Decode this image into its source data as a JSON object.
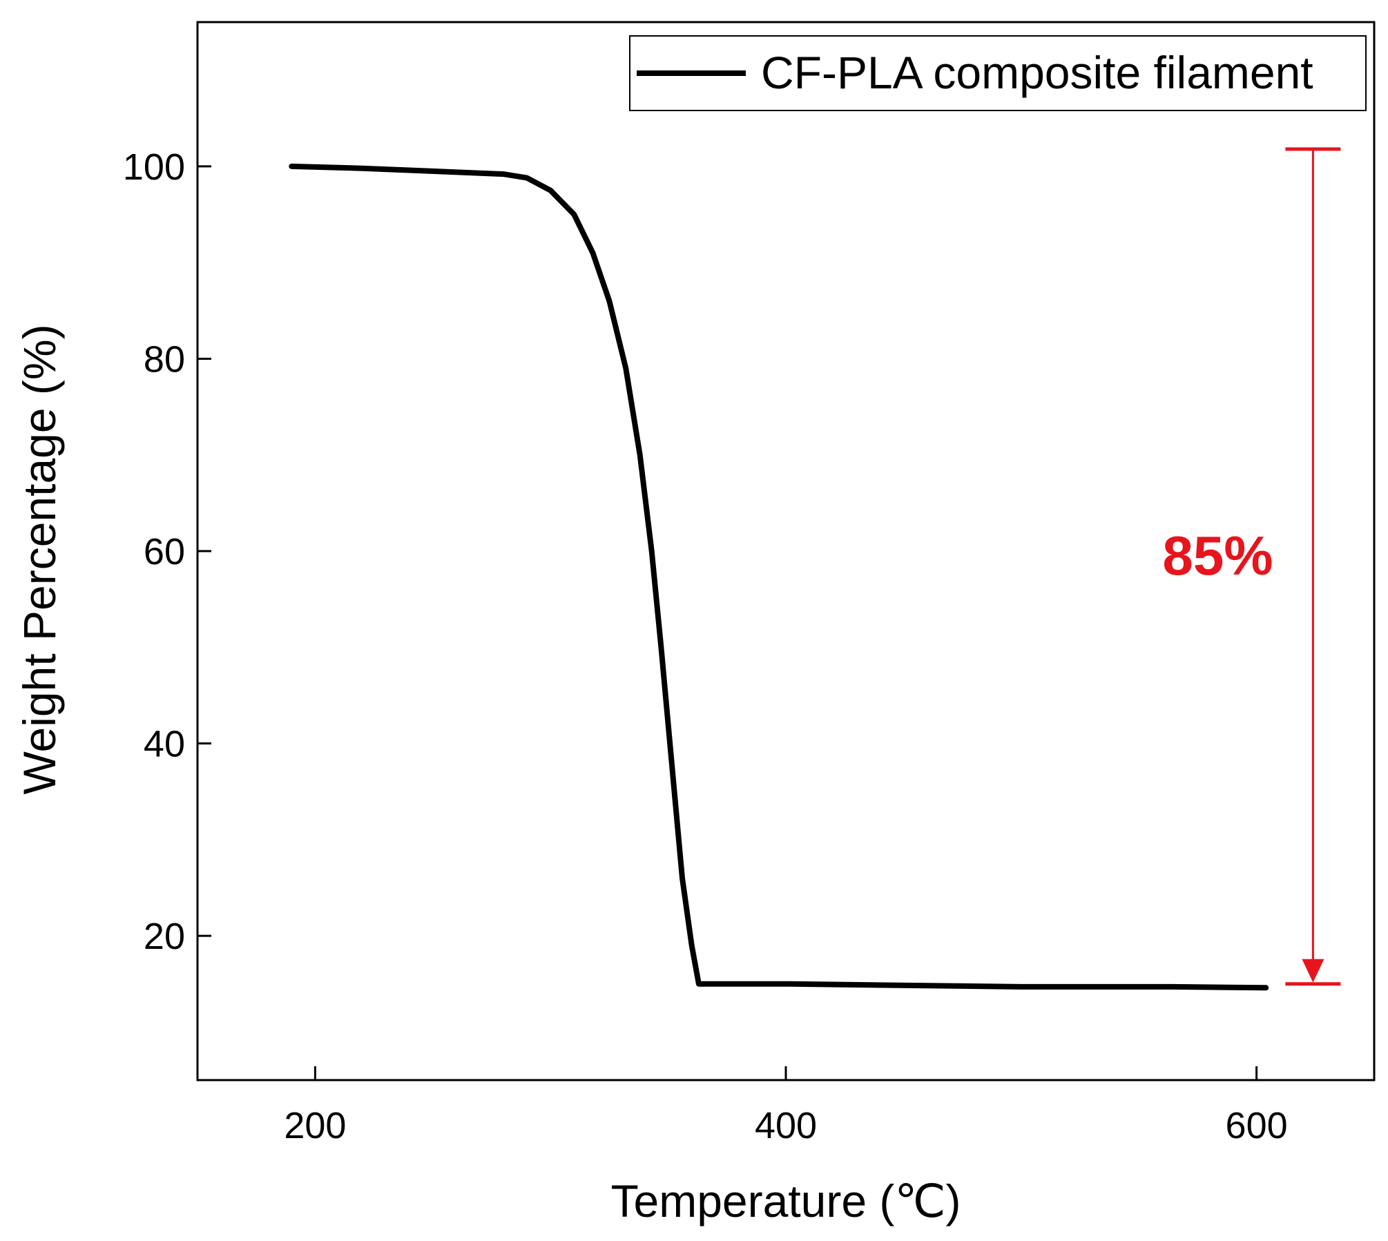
{
  "chart_data": {
    "type": "line",
    "title": "",
    "xlabel": "Temperature (℃)",
    "ylabel": "Weight Percentage (%)",
    "xlim": [
      150,
      650
    ],
    "ylim": [
      5,
      115
    ],
    "xticks": [
      200,
      400,
      600
    ],
    "yticks": [
      20,
      40,
      60,
      80,
      100
    ],
    "grid": false,
    "legend": {
      "placement": "top-right",
      "entries": [
        "CF-PLA composite filament"
      ]
    },
    "series": [
      {
        "name": "CF-PLA composite filament",
        "color": "#000000",
        "x": [
          190,
          220,
          250,
          280,
          290,
          300,
          310,
          318,
          325,
          332,
          338,
          343,
          347,
          350,
          353,
          356,
          360,
          363,
          400,
          500,
          564,
          604
        ],
        "y": [
          100,
          99.8,
          99.5,
          99.2,
          98.8,
          97.5,
          95,
          91,
          86,
          79,
          70,
          60,
          50,
          42,
          34,
          26,
          19,
          15,
          15,
          14.7,
          14.7,
          14.6
        ]
      }
    ],
    "annotations": [
      {
        "type": "range-arrow",
        "color": "#e8141c",
        "x": 624,
        "y_top": 101.8,
        "y_bottom": 15,
        "label": "85%"
      }
    ]
  }
}
